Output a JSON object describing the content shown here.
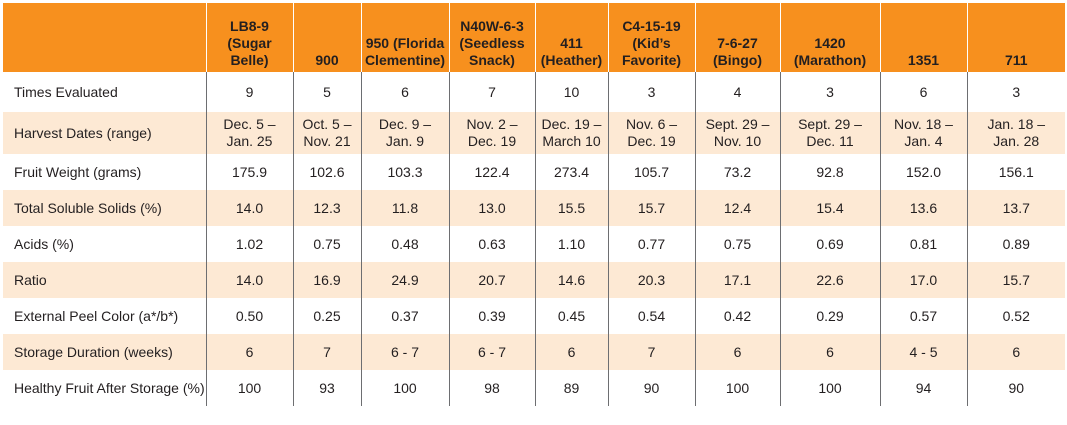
{
  "table": {
    "columns": [
      "LB8-9\n(Sugar\nBelle)",
      "900",
      "950 (Florida\nClementine)",
      "N40W-6-3\n(Seedless\nSnack)",
      "411\n(Heather)",
      "C4-15-19\n(Kid’s\nFavorite)",
      "7-6-27\n(Bingo)",
      "1420\n(Marathon)",
      "1351",
      "711"
    ],
    "rows": [
      {
        "label": "Times Evaluated",
        "values": [
          "9",
          "5",
          "6",
          "7",
          "10",
          "3",
          "4",
          "3",
          "6",
          "3"
        ]
      },
      {
        "label": "Harvest Dates (range)",
        "values": [
          "Dec. 5 –\nJan. 25",
          "Oct. 5 –\nNov. 21",
          "Dec. 9 –\nJan. 9",
          "Nov. 2 –\nDec. 19",
          "Dec. 19 –\nMarch 10",
          "Nov. 6 –\nDec. 19",
          "Sept. 29 –\nNov. 10",
          "Sept. 29 –\nDec. 11",
          "Nov. 18 –\nJan. 4",
          "Jan. 18 –\nJan. 28"
        ]
      },
      {
        "label": "Fruit Weight (grams)",
        "values": [
          "175.9",
          "102.6",
          "103.3",
          "122.4",
          "273.4",
          "105.7",
          "73.2",
          "92.8",
          "152.0",
          "156.1"
        ]
      },
      {
        "label": "Total Soluble Solids (%)",
        "values": [
          "14.0",
          "12.3",
          "11.8",
          "13.0",
          "15.5",
          "15.7",
          "12.4",
          "15.4",
          "13.6",
          "13.7"
        ]
      },
      {
        "label": "Acids (%)",
        "values": [
          "1.02",
          "0.75",
          "0.48",
          "0.63",
          "1.10",
          "0.77",
          "0.75",
          "0.69",
          "0.81",
          "0.89"
        ]
      },
      {
        "label": "Ratio",
        "values": [
          "14.0",
          "16.9",
          "24.9",
          "20.7",
          "14.6",
          "20.3",
          "17.1",
          "22.6",
          "17.0",
          "15.7"
        ]
      },
      {
        "label": "External Peel Color (a*/b*)",
        "values": [
          "0.50",
          "0.25",
          "0.37",
          "0.39",
          "0.45",
          "0.54",
          "0.42",
          "0.29",
          "0.57",
          "0.52"
        ]
      },
      {
        "label": "Storage Duration (weeks)",
        "values": [
          "6",
          "7",
          "6 - 7",
          "6 - 7",
          "6",
          "7",
          "6",
          "6",
          "4 - 5",
          "6"
        ]
      },
      {
        "label": "Healthy Fruit After Storage (%)",
        "values": [
          "100",
          "93",
          "100",
          "98",
          "89",
          "90",
          "100",
          "100",
          "94",
          "90"
        ]
      }
    ]
  },
  "colors": {
    "header_bg": "#f7901e",
    "alt_row_bg": "#fde9d4",
    "text": "#231f20"
  }
}
